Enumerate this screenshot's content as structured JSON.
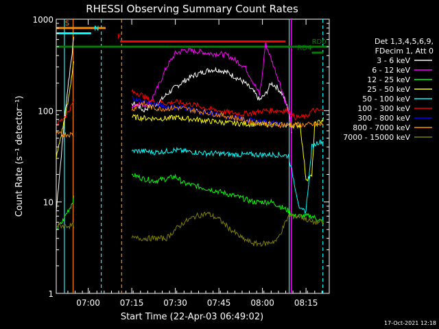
{
  "chart_data": {
    "type": "line",
    "title": "RHESSI Observing Summary Count Rates",
    "xlabel": "Start Time (22-Apr-03 06:49:02)",
    "ylabel": "Count Rate (s⁻¹ detector⁻¹)",
    "yscale": "log",
    "ylim": [
      1,
      1000
    ],
    "xlim_minutes": [
      0,
      94
    ],
    "x_ticks": [
      {
        "label": "07:00",
        "minute": 11
      },
      {
        "label": "07:15",
        "minute": 26
      },
      {
        "label": "07:30",
        "minute": 41
      },
      {
        "label": "07:45",
        "minute": 56
      },
      {
        "label": "08:00",
        "minute": 71
      },
      {
        "label": "08:15",
        "minute": 86
      }
    ],
    "y_ticks": [
      {
        "label": "1",
        "value": 1
      },
      {
        "label": "10",
        "value": 10
      },
      {
        "label": "100",
        "value": 100
      },
      {
        "label": "1000",
        "value": 1000
      }
    ],
    "legend_header": [
      "Det 1,3,4,5,6,9,",
      "FDecim 1, Att 0"
    ],
    "series": [
      {
        "name": "3 - 6 keV",
        "color": "#ffffff",
        "points": [
          [
            0,
            8
          ],
          [
            1,
            18
          ],
          [
            2,
            40
          ],
          [
            3,
            90
          ],
          [
            4,
            180
          ],
          [
            5,
            330
          ],
          [
            6,
            600
          ],
          [
            26,
            120
          ],
          [
            28,
            115
          ],
          [
            30,
            100
          ],
          [
            32,
            110
          ],
          [
            35,
            120
          ],
          [
            38,
            150
          ],
          [
            41,
            180
          ],
          [
            44,
            210
          ],
          [
            47,
            240
          ],
          [
            50,
            260
          ],
          [
            53,
            280
          ],
          [
            56,
            280
          ],
          [
            59,
            260
          ],
          [
            62,
            230
          ],
          [
            65,
            200
          ],
          [
            68,
            160
          ],
          [
            70,
            130
          ],
          [
            72,
            150
          ],
          [
            74,
            200
          ],
          [
            76,
            180
          ],
          [
            78,
            150
          ],
          [
            80,
            100
          ],
          [
            81,
            60
          ]
        ]
      },
      {
        "name": "6 - 12 keV",
        "color": "#ff00ff",
        "points": [
          [
            26,
            110
          ],
          [
            28,
            120
          ],
          [
            30,
            115
          ],
          [
            32,
            120
          ],
          [
            35,
            180
          ],
          [
            38,
            300
          ],
          [
            41,
            420
          ],
          [
            44,
            460
          ],
          [
            47,
            450
          ],
          [
            50,
            440
          ],
          [
            53,
            420
          ],
          [
            56,
            420
          ],
          [
            59,
            400
          ],
          [
            62,
            350
          ],
          [
            65,
            300
          ],
          [
            68,
            200
          ],
          [
            70,
            150
          ],
          [
            71,
            250
          ],
          [
            72,
            550
          ],
          [
            73,
            450
          ],
          [
            75,
            300
          ],
          [
            77,
            200
          ],
          [
            79,
            120
          ],
          [
            80,
            100
          ],
          [
            81,
            60
          ]
        ]
      },
      {
        "name": "12 - 25 keV",
        "color": "#00ff00",
        "points": [
          [
            0,
            5
          ],
          [
            2,
            6
          ],
          [
            4,
            8
          ],
          [
            5,
            9
          ],
          [
            6,
            11
          ],
          [
            26,
            20
          ],
          [
            30,
            18
          ],
          [
            34,
            17
          ],
          [
            38,
            18
          ],
          [
            41,
            19
          ],
          [
            44,
            16
          ],
          [
            48,
            15
          ],
          [
            52,
            14
          ],
          [
            56,
            13
          ],
          [
            60,
            12
          ],
          [
            64,
            11
          ],
          [
            68,
            10
          ],
          [
            71,
            10
          ],
          [
            74,
            10
          ],
          [
            77,
            9
          ],
          [
            80,
            8
          ],
          [
            82,
            7
          ],
          [
            88,
            7
          ],
          [
            92,
            6
          ]
        ]
      },
      {
        "name": "25 - 50 keV",
        "color": "#ffff00",
        "points": [
          [
            0,
            30
          ],
          [
            2,
            60
          ],
          [
            4,
            120
          ],
          [
            5,
            200
          ],
          [
            6,
            350
          ],
          [
            26,
            85
          ],
          [
            30,
            83
          ],
          [
            34,
            82
          ],
          [
            38,
            82
          ],
          [
            41,
            84
          ],
          [
            44,
            82
          ],
          [
            48,
            80
          ],
          [
            52,
            77
          ],
          [
            56,
            75
          ],
          [
            60,
            73
          ],
          [
            64,
            72
          ],
          [
            68,
            71
          ],
          [
            72,
            71
          ],
          [
            76,
            70
          ],
          [
            80,
            69
          ],
          [
            84,
            69
          ],
          [
            86,
            18
          ],
          [
            88,
            19
          ],
          [
            89,
            70
          ],
          [
            92,
            80
          ]
        ]
      },
      {
        "name": "50 - 100 keV",
        "color": "#00ffff",
        "points": [
          [
            26,
            36
          ],
          [
            30,
            36
          ],
          [
            34,
            35
          ],
          [
            38,
            36
          ],
          [
            41,
            37
          ],
          [
            44,
            36
          ],
          [
            48,
            35
          ],
          [
            52,
            34
          ],
          [
            56,
            34
          ],
          [
            60,
            33
          ],
          [
            64,
            33
          ],
          [
            68,
            33
          ],
          [
            72,
            33
          ],
          [
            76,
            33
          ],
          [
            80,
            32
          ],
          [
            84,
            8
          ],
          [
            86,
            8
          ],
          [
            88,
            40
          ],
          [
            90,
            45
          ],
          [
            92,
            46
          ]
        ]
      },
      {
        "name": "100 - 300 keV",
        "color": "#ff0000",
        "points": [
          [
            0,
            70
          ],
          [
            2,
            80
          ],
          [
            4,
            95
          ],
          [
            5,
            110
          ],
          [
            6,
            125
          ],
          [
            26,
            160
          ],
          [
            28,
            155
          ],
          [
            30,
            145
          ],
          [
            32,
            130
          ],
          [
            34,
            125
          ],
          [
            38,
            120
          ],
          [
            41,
            125
          ],
          [
            44,
            120
          ],
          [
            48,
            115
          ],
          [
            52,
            105
          ],
          [
            56,
            100
          ],
          [
            60,
            95
          ],
          [
            64,
            92
          ],
          [
            68,
            95
          ],
          [
            72,
            100
          ],
          [
            76,
            100
          ],
          [
            80,
            100
          ],
          [
            82,
            85
          ],
          [
            86,
            85
          ],
          [
            88,
            100
          ],
          [
            92,
            100
          ]
        ]
      },
      {
        "name": "300 - 800 keV",
        "color": "#0000ff",
        "points": [
          [
            26,
            140
          ],
          [
            28,
            130
          ],
          [
            30,
            125
          ],
          [
            32,
            120
          ],
          [
            35,
            115
          ],
          [
            38,
            110
          ],
          [
            41,
            110
          ],
          [
            44,
            108
          ],
          [
            48,
            100
          ],
          [
            52,
            95
          ],
          [
            56,
            90
          ],
          [
            60,
            85
          ],
          [
            64,
            80
          ],
          [
            68,
            78
          ],
          [
            72,
            75
          ],
          [
            76,
            72
          ],
          [
            80,
            70
          ]
        ]
      },
      {
        "name": "800 - 7000 keV",
        "color": "#ff8c00",
        "points": [
          [
            0,
            55
          ],
          [
            6,
            55
          ],
          [
            26,
            100
          ],
          [
            28,
            115
          ],
          [
            30,
            120
          ],
          [
            32,
            110
          ],
          [
            35,
            105
          ],
          [
            38,
            105
          ],
          [
            41,
            108
          ],
          [
            44,
            105
          ],
          [
            48,
            100
          ],
          [
            52,
            95
          ],
          [
            56,
            90
          ],
          [
            60,
            85
          ],
          [
            64,
            80
          ],
          [
            68,
            75
          ],
          [
            72,
            72
          ],
          [
            76,
            70
          ],
          [
            80,
            70
          ],
          [
            84,
            70
          ],
          [
            88,
            70
          ],
          [
            92,
            70
          ]
        ]
      },
      {
        "name": "7000 - 15000 keV",
        "color": "#808000",
        "points": [
          [
            0,
            5.5
          ],
          [
            6,
            5.5
          ],
          [
            26,
            4
          ],
          [
            30,
            4
          ],
          [
            34,
            4
          ],
          [
            38,
            4
          ],
          [
            41,
            5
          ],
          [
            44,
            6
          ],
          [
            48,
            7
          ],
          [
            52,
            7.5
          ],
          [
            56,
            6.5
          ],
          [
            60,
            5
          ],
          [
            64,
            4
          ],
          [
            68,
            3.5
          ],
          [
            72,
            3.5
          ],
          [
            76,
            3.8
          ],
          [
            80,
            7
          ],
          [
            84,
            7
          ],
          [
            88,
            6
          ],
          [
            92,
            6
          ]
        ]
      }
    ],
    "annotations": [
      {
        "label": "S",
        "color": "#ff8c00",
        "x_start": 0,
        "x_end": 17,
        "y": 800,
        "text_x": 3
      },
      {
        "label": "N",
        "color": "#00ffff",
        "x_start": 0,
        "x_end": 12,
        "y": 700,
        "text_x": 13
      },
      {
        "label": "F",
        "color": "#ff0000",
        "x_start": 22,
        "x_end": 79,
        "y": 570,
        "text_x": 21
      },
      {
        "label": "RD0",
        "color": "#008000",
        "x_start": 0,
        "x_end": 94,
        "y": 500,
        "text_x": 88
      },
      {
        "label": "RD4",
        "color": "#008000",
        "x_start": 88,
        "x_end": 92,
        "y": 430,
        "text_x": 83
      }
    ],
    "vertical_markers": [
      {
        "minute": 2.8,
        "color": "#00ffff",
        "style": "solid"
      },
      {
        "minute": 5.8,
        "color": "#ff8c00",
        "style": "solid"
      },
      {
        "minute": 15.5,
        "color": "#00ffff",
        "style": "dashed"
      },
      {
        "minute": 22.5,
        "color": "#ff8c00",
        "style": "dashed"
      },
      {
        "minute": 80.2,
        "color": "#00ffff",
        "style": "solid"
      },
      {
        "minute": 80.9,
        "color": "#ff00ff",
        "style": "solid"
      },
      {
        "minute": 91.8,
        "color": "#00ffff",
        "style": "dashed"
      }
    ],
    "timestamp": "17-Oct-2021 12:18"
  }
}
